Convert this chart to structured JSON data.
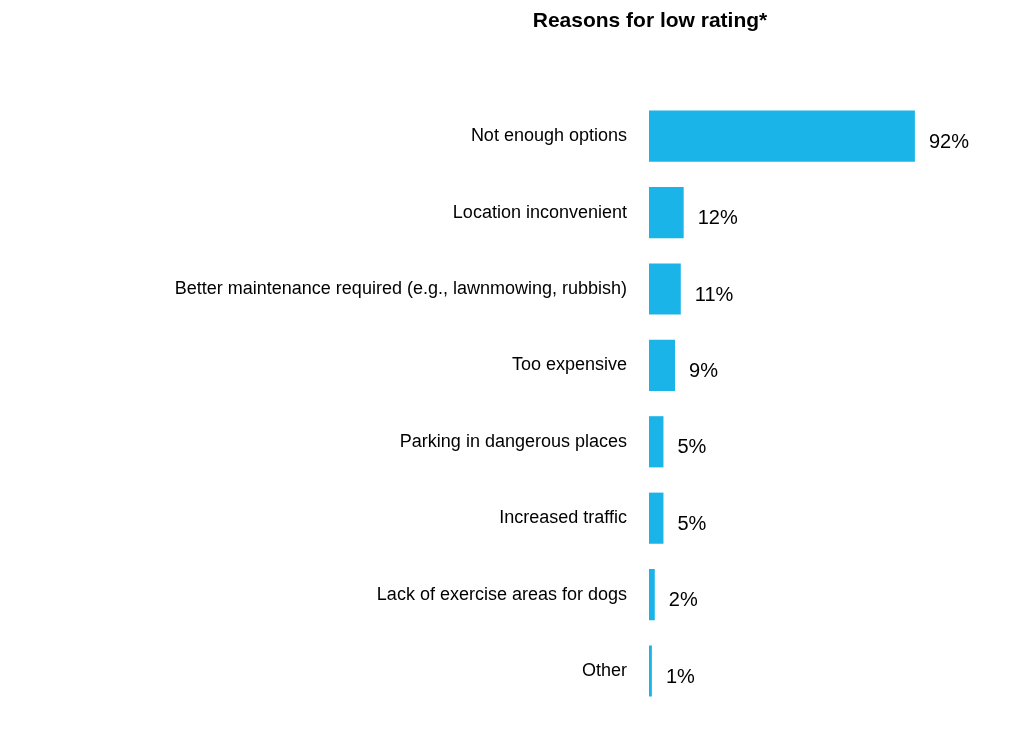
{
  "chart_data": {
    "type": "bar",
    "title": "Reasons for low rating*",
    "orientation": "horizontal",
    "categories": [
      "Not enough options",
      "Location inconvenient",
      "Better maintenance required (e.g., lawnmowing, rubbish)",
      "Too expensive",
      "Parking in dangerous places",
      "Increased traffic",
      "Lack of exercise areas for dogs",
      "Other"
    ],
    "values": [
      92,
      12,
      11,
      9,
      5,
      5,
      2,
      1
    ],
    "value_labels": [
      "92%",
      "12%",
      "11%",
      "9%",
      "5%",
      "5%",
      "2%",
      "1%"
    ],
    "color": "#1ab4e8",
    "grid": false,
    "legend": false
  }
}
